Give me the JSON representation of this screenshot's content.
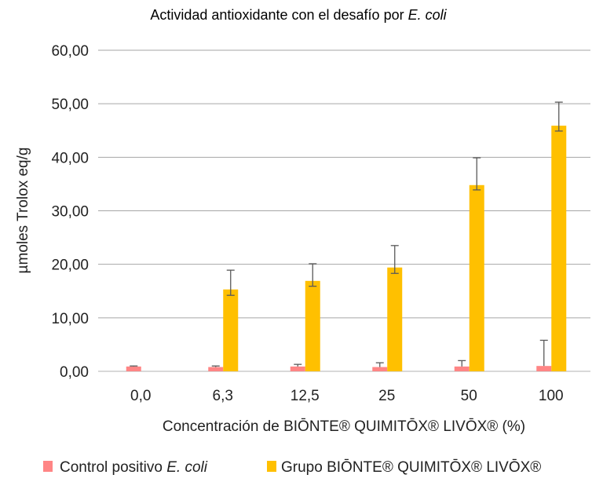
{
  "chart_data": {
    "type": "bar",
    "title": "Actividad antioxidante con el desafío por ",
    "title_italic": "E. coli",
    "xlabel": "Concentración de BIŌNTE® QUIMITŌX® LIVŌX® (%)",
    "ylabel": "µmoles Trolox eq/g",
    "ylim": [
      0,
      60
    ],
    "yticks": [
      "0,00",
      "10,00",
      "20,00",
      "30,00",
      "40,00",
      "50,00",
      "60,00"
    ],
    "ytick_values": [
      0,
      10,
      20,
      30,
      40,
      50,
      60
    ],
    "categories": [
      "0,0",
      "6,3",
      "12,5",
      "25",
      "50",
      "100"
    ],
    "grid": true,
    "legend_position": "bottom",
    "series": [
      {
        "name": "Control positivo ",
        "name_italic": "E. coli",
        "color": "#FF8585",
        "values": [
          0.9,
          0.8,
          0.9,
          0.8,
          0.9,
          1.0
        ],
        "err_high": [
          1.0,
          1.0,
          1.3,
          1.6,
          2.0,
          5.8
        ],
        "err_low": [
          0.9,
          0.8,
          0.9,
          0.8,
          0.9,
          1.0
        ]
      },
      {
        "name": "Grupo BIŌNTE® QUIMITŌX® LIVŌX®",
        "name_italic": "",
        "color": "#FFC000",
        "values": [
          null,
          15.3,
          16.9,
          19.4,
          34.8,
          45.9
        ],
        "err_high": [
          null,
          18.9,
          20.1,
          23.5,
          39.9,
          50.3
        ],
        "err_low": [
          null,
          14.2,
          15.9,
          18.3,
          33.9,
          44.9
        ]
      }
    ]
  }
}
